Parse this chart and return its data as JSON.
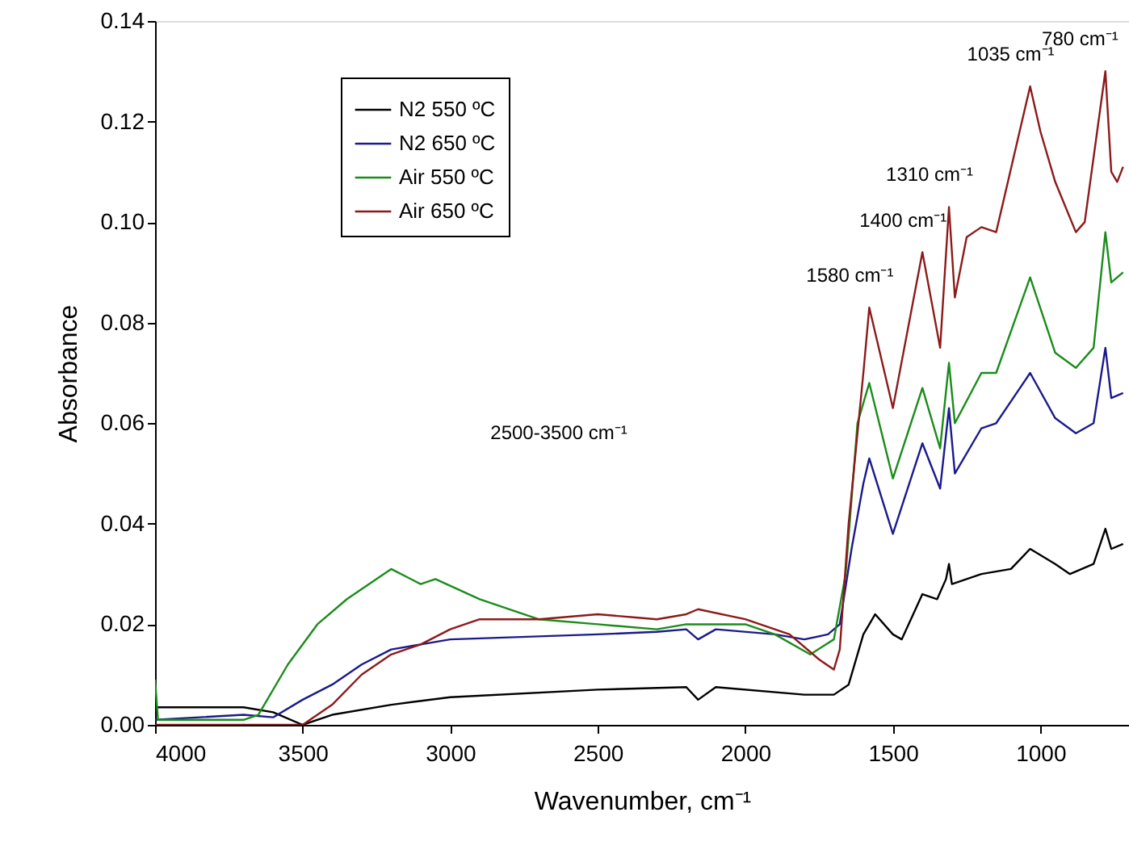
{
  "chart_data": {
    "type": "line",
    "xlabel": "Wavenumber, cm⁻¹",
    "ylabel": "Absorbance",
    "xlim": [
      4000,
      700
    ],
    "xticks": [
      4000,
      3500,
      3000,
      2500,
      2000,
      1500,
      1000
    ],
    "ylim": [
      0,
      0.14
    ],
    "yticks": [
      {
        "value": 0,
        "label": "0.00"
      },
      0.02,
      0.04,
      0.06,
      0.08,
      {
        "value": 0.1,
        "label": "0.10"
      },
      0.12,
      0.14
    ],
    "grid": false,
    "legend": "top left",
    "marker": "none",
    "line_style": "solid",
    "series": [
      {
        "name": "N2 550 ºC",
        "color": "#000000",
        "x": [
          4000,
          3700,
          3600,
          3500,
          3400,
          3200,
          3000,
          2500,
          2200,
          2160,
          2100,
          1800,
          1700,
          1650,
          1600,
          1560,
          1500,
          1470,
          1400,
          1350,
          1320,
          1310,
          1300,
          1200,
          1100,
          1035,
          950,
          900,
          820,
          780,
          760,
          720
        ],
        "values": [
          0.0035,
          0.0035,
          0.0025,
          0.0,
          0.002,
          0.004,
          0.0055,
          0.007,
          0.0075,
          0.005,
          0.0075,
          0.006,
          0.006,
          0.008,
          0.018,
          0.022,
          0.018,
          0.017,
          0.026,
          0.025,
          0.029,
          0.032,
          0.028,
          0.03,
          0.031,
          0.035,
          0.032,
          0.03,
          0.032,
          0.039,
          0.035,
          0.036
        ]
      },
      {
        "name": "N2 650 ºC",
        "color": "#1a1a8c",
        "x": [
          4000,
          3700,
          3600,
          3500,
          3400,
          3300,
          3200,
          3100,
          3000,
          2500,
          2300,
          2200,
          2160,
          2100,
          1900,
          1800,
          1720,
          1680,
          1640,
          1600,
          1580,
          1500,
          1400,
          1340,
          1310,
          1290,
          1200,
          1150,
          1035,
          950,
          880,
          820,
          780,
          760,
          720
        ],
        "values": [
          0.001,
          0.002,
          0.0015,
          0.005,
          0.008,
          0.012,
          0.015,
          0.016,
          0.017,
          0.018,
          0.0185,
          0.019,
          0.017,
          0.019,
          0.018,
          0.017,
          0.018,
          0.02,
          0.035,
          0.048,
          0.053,
          0.038,
          0.056,
          0.047,
          0.063,
          0.05,
          0.059,
          0.06,
          0.07,
          0.061,
          0.058,
          0.06,
          0.075,
          0.065,
          0.066
        ]
      },
      {
        "name": "Air 550 ºC",
        "color": "#1a8c1a",
        "x": [
          4000,
          3990,
          3700,
          3650,
          3550,
          3450,
          3350,
          3200,
          3100,
          3050,
          2900,
          2700,
          2500,
          2300,
          2200,
          2000,
          1900,
          1780,
          1700,
          1660,
          1620,
          1580,
          1500,
          1400,
          1340,
          1310,
          1290,
          1200,
          1150,
          1035,
          950,
          880,
          820,
          780,
          760,
          720
        ],
        "values": [
          0.009,
          0.001,
          0.001,
          0.002,
          0.012,
          0.02,
          0.025,
          0.031,
          0.028,
          0.029,
          0.025,
          0.021,
          0.02,
          0.019,
          0.02,
          0.02,
          0.018,
          0.014,
          0.017,
          0.03,
          0.06,
          0.068,
          0.049,
          0.067,
          0.055,
          0.072,
          0.06,
          0.07,
          0.07,
          0.089,
          0.074,
          0.071,
          0.075,
          0.098,
          0.088,
          0.09
        ]
      },
      {
        "name": "Air 650 ºC",
        "color": "#8c1a1a",
        "x": [
          4000,
          3500,
          3400,
          3300,
          3200,
          3100,
          3000,
          2900,
          2700,
          2500,
          2300,
          2200,
          2160,
          2000,
          1850,
          1750,
          1700,
          1680,
          1650,
          1600,
          1580,
          1500,
          1400,
          1340,
          1310,
          1290,
          1250,
          1200,
          1150,
          1035,
          1000,
          950,
          880,
          850,
          780,
          760,
          740,
          720
        ],
        "values": [
          0.0,
          0.0,
          0.004,
          0.01,
          0.014,
          0.016,
          0.019,
          0.021,
          0.021,
          0.022,
          0.021,
          0.022,
          0.023,
          0.021,
          0.018,
          0.013,
          0.011,
          0.015,
          0.04,
          0.07,
          0.083,
          0.063,
          0.094,
          0.075,
          0.103,
          0.085,
          0.097,
          0.099,
          0.098,
          0.127,
          0.118,
          0.108,
          0.098,
          0.1,
          0.13,
          0.11,
          0.108,
          0.111
        ]
      }
    ],
    "annotations": [
      "2500-3500 cm⁻¹",
      {
        "text": "1580 cm⁻¹",
        "x": 1580,
        "y": 0.083
      },
      {
        "text": "1400 cm⁻¹",
        "x": 1400,
        "y": 0.094
      },
      {
        "text": "1310 cm⁻¹",
        "x": 1310,
        "y": 0.103
      },
      {
        "text": "1035 cm⁻¹",
        "x": 1035,
        "y": 0.127
      },
      {
        "text": "780 cm⁻¹",
        "x": 780,
        "y": 0.13
      }
    ]
  }
}
